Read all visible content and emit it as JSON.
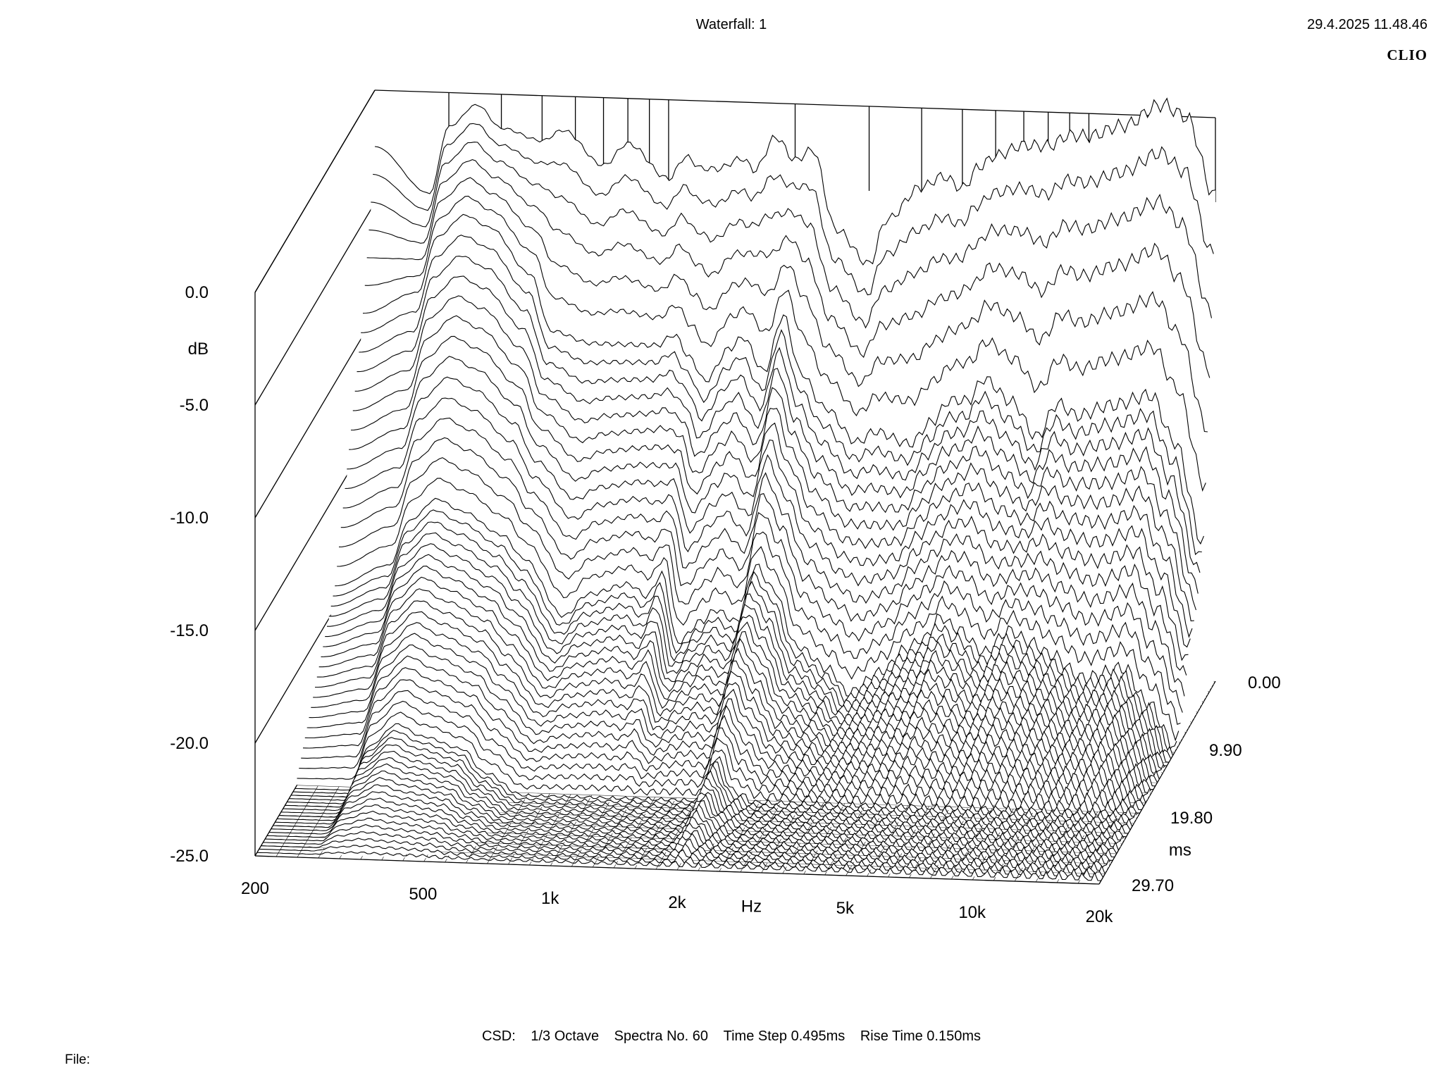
{
  "header": {
    "title": "Waterfall: 1",
    "timestamp": "29.4.2025 11.48.46",
    "brand": "CLIO"
  },
  "footer": {
    "mode": "CSD:",
    "smoothing": "1/3 Octave",
    "spectra": "Spectra No. 60",
    "time_step": "Time Step 0.495ms",
    "rise_time": "Rise Time 0.150ms",
    "file_label": "File:"
  },
  "chart_data": {
    "type": "waterfall",
    "title": "Waterfall: 1",
    "xlabel": "Hz",
    "ylabel": "dB",
    "zlabel": "ms",
    "x_scale": "log",
    "xlim": [
      200,
      20000
    ],
    "ylim": [
      -25,
      0
    ],
    "zlim": [
      0,
      29.7
    ],
    "x_ticks": [
      {
        "value": 200,
        "label": "200"
      },
      {
        "value": 500,
        "label": "500"
      },
      {
        "value": 1000,
        "label": "1k"
      },
      {
        "value": 2000,
        "label": "2k"
      },
      {
        "value": 5000,
        "label": "5k"
      },
      {
        "value": 10000,
        "label": "10k"
      },
      {
        "value": 20000,
        "label": "20k"
      }
    ],
    "y_ticks": [
      {
        "value": 0,
        "label": "0.0"
      },
      {
        "value": -5,
        "label": "-5.0"
      },
      {
        "value": -10,
        "label": "-10.0"
      },
      {
        "value": -15,
        "label": "-15.0"
      },
      {
        "value": -20,
        "label": "-20.0"
      },
      {
        "value": -25,
        "label": "-25.0"
      }
    ],
    "z_ticks": [
      {
        "value": 0,
        "label": "0.00"
      },
      {
        "value": 9.9,
        "label": "9.90"
      },
      {
        "value": 19.8,
        "label": "19.80"
      },
      {
        "value": 29.7,
        "label": "29.70"
      }
    ],
    "spectra_count": 60,
    "time_step_ms": 0.495,
    "series": [
      {
        "time_ms": 0.0,
        "x": [
          200,
          270,
          300,
          350,
          400,
          500,
          560,
          700,
          800,
          1000,
          1100,
          1200,
          1300,
          1500,
          1600,
          1800,
          2000,
          2200,
          2500,
          3000,
          3300,
          4000,
          4500,
          5000,
          5500,
          6000,
          7000,
          8000,
          9000,
          10000,
          12000,
          15000,
          17000,
          20000
        ],
        "y": [
          -2.5,
          -4.5,
          -1.5,
          -0.5,
          -1.5,
          -2.0,
          -1.5,
          -3.0,
          -2.0,
          -3.5,
          -2.5,
          -3.0,
          -3.0,
          -2.5,
          -3.0,
          -1.5,
          -2.5,
          -2.0,
          -5.5,
          -7.0,
          -5.0,
          -3.5,
          -3.0,
          -3.5,
          -2.5,
          -2.0,
          -1.5,
          -1.5,
          -1.0,
          -1.0,
          -0.5,
          0.5,
          0.0,
          -3.5
        ]
      },
      {
        "time_ms": 2.97,
        "x": [
          200,
          270,
          300,
          350,
          400,
          500,
          560,
          700,
          800,
          1000,
          1100,
          1200,
          1300,
          1500,
          1600,
          1800,
          2000,
          2200,
          2500,
          3000,
          3300,
          4000,
          4500,
          5000,
          5500,
          6000,
          7000,
          8000,
          9000,
          10000,
          12000,
          15000,
          17000,
          20000
        ],
        "y": [
          -9.0,
          -8.0,
          -5.5,
          -4.5,
          -5.0,
          -7.0,
          -9.5,
          -10.0,
          -10.0,
          -10.0,
          -9.5,
          -10.5,
          -11.5,
          -10.0,
          -9.5,
          -11.0,
          -8.5,
          -11.0,
          -12.5,
          -14.0,
          -13.5,
          -14.0,
          -13.0,
          -12.0,
          -12.0,
          -11.0,
          -12.0,
          -13.5,
          -12.0,
          -12.5,
          -12.0,
          -11.5,
          -13.5,
          -18.0
        ]
      },
      {
        "time_ms": 9.9,
        "x": [
          200,
          270,
          300,
          350,
          400,
          500,
          560,
          700,
          800,
          1000,
          1100,
          1200,
          1300,
          1500,
          1600,
          1800,
          2000,
          2200,
          2500,
          3000,
          3300,
          4000,
          4500,
          5000,
          5500,
          6000,
          7000,
          8000,
          9000,
          10000,
          12000,
          15000,
          17000,
          20000
        ],
        "y": [
          -19.0,
          -18.0,
          -16.0,
          -15.0,
          -15.5,
          -16.5,
          -17.5,
          -20.0,
          -19.0,
          -18.5,
          -19.0,
          -18.0,
          -21.0,
          -20.0,
          -19.5,
          -20.0,
          -17.5,
          -18.5,
          -21.0,
          -22.0,
          -23.0,
          -22.0,
          -21.0,
          -20.5,
          -19.5,
          -20.0,
          -21.0,
          -20.0,
          -20.5,
          -21.0,
          -22.0,
          -21.5,
          -23.0,
          -25.0
        ]
      },
      {
        "time_ms": 19.8,
        "x": [
          200,
          270,
          300,
          350,
          400,
          500,
          560,
          700,
          800,
          1000,
          1100,
          1200,
          1300,
          1500,
          1600,
          1800,
          2000,
          2200,
          2500,
          3000,
          3300,
          4000,
          4500,
          5000,
          5500,
          6000,
          7000,
          8000,
          9000,
          10000,
          12000,
          15000,
          17000,
          20000
        ],
        "y": [
          -25.0,
          -25.0,
          -23.0,
          -22.0,
          -22.5,
          -23.0,
          -24.0,
          -25.0,
          -25.0,
          -25.0,
          -25.0,
          -25.0,
          -25.0,
          -25.0,
          -25.0,
          -25.0,
          -23.0,
          -24.5,
          -25.0,
          -25.0,
          -25.0,
          -25.0,
          -25.0,
          -25.0,
          -25.0,
          -25.0,
          -25.0,
          -25.0,
          -25.0,
          -25.0,
          -25.0,
          -25.0,
          -25.0,
          -25.0
        ]
      },
      {
        "time_ms": 29.7,
        "x": [
          200,
          270,
          300,
          350,
          400,
          500,
          560,
          700,
          800,
          1000,
          1100,
          1200,
          1300,
          1500,
          1600,
          1800,
          2000,
          2200,
          2500,
          3000,
          3300,
          4000,
          4500,
          5000,
          5500,
          6000,
          7000,
          8000,
          9000,
          10000,
          12000,
          15000,
          17000,
          20000
        ],
        "y": [
          -25.0,
          -25.0,
          -25.0,
          -25.0,
          -25.0,
          -25.0,
          -25.0,
          -25.0,
          -25.0,
          -25.0,
          -25.0,
          -25.0,
          -25.0,
          -25.0,
          -25.0,
          -25.0,
          -25.0,
          -25.0,
          -25.0,
          -25.0,
          -25.0,
          -25.0,
          -25.0,
          -25.0,
          -25.0,
          -25.0,
          -25.0,
          -25.0,
          -25.0,
          -25.0,
          -25.0,
          -25.0,
          -25.0,
          -25.0
        ]
      }
    ]
  }
}
